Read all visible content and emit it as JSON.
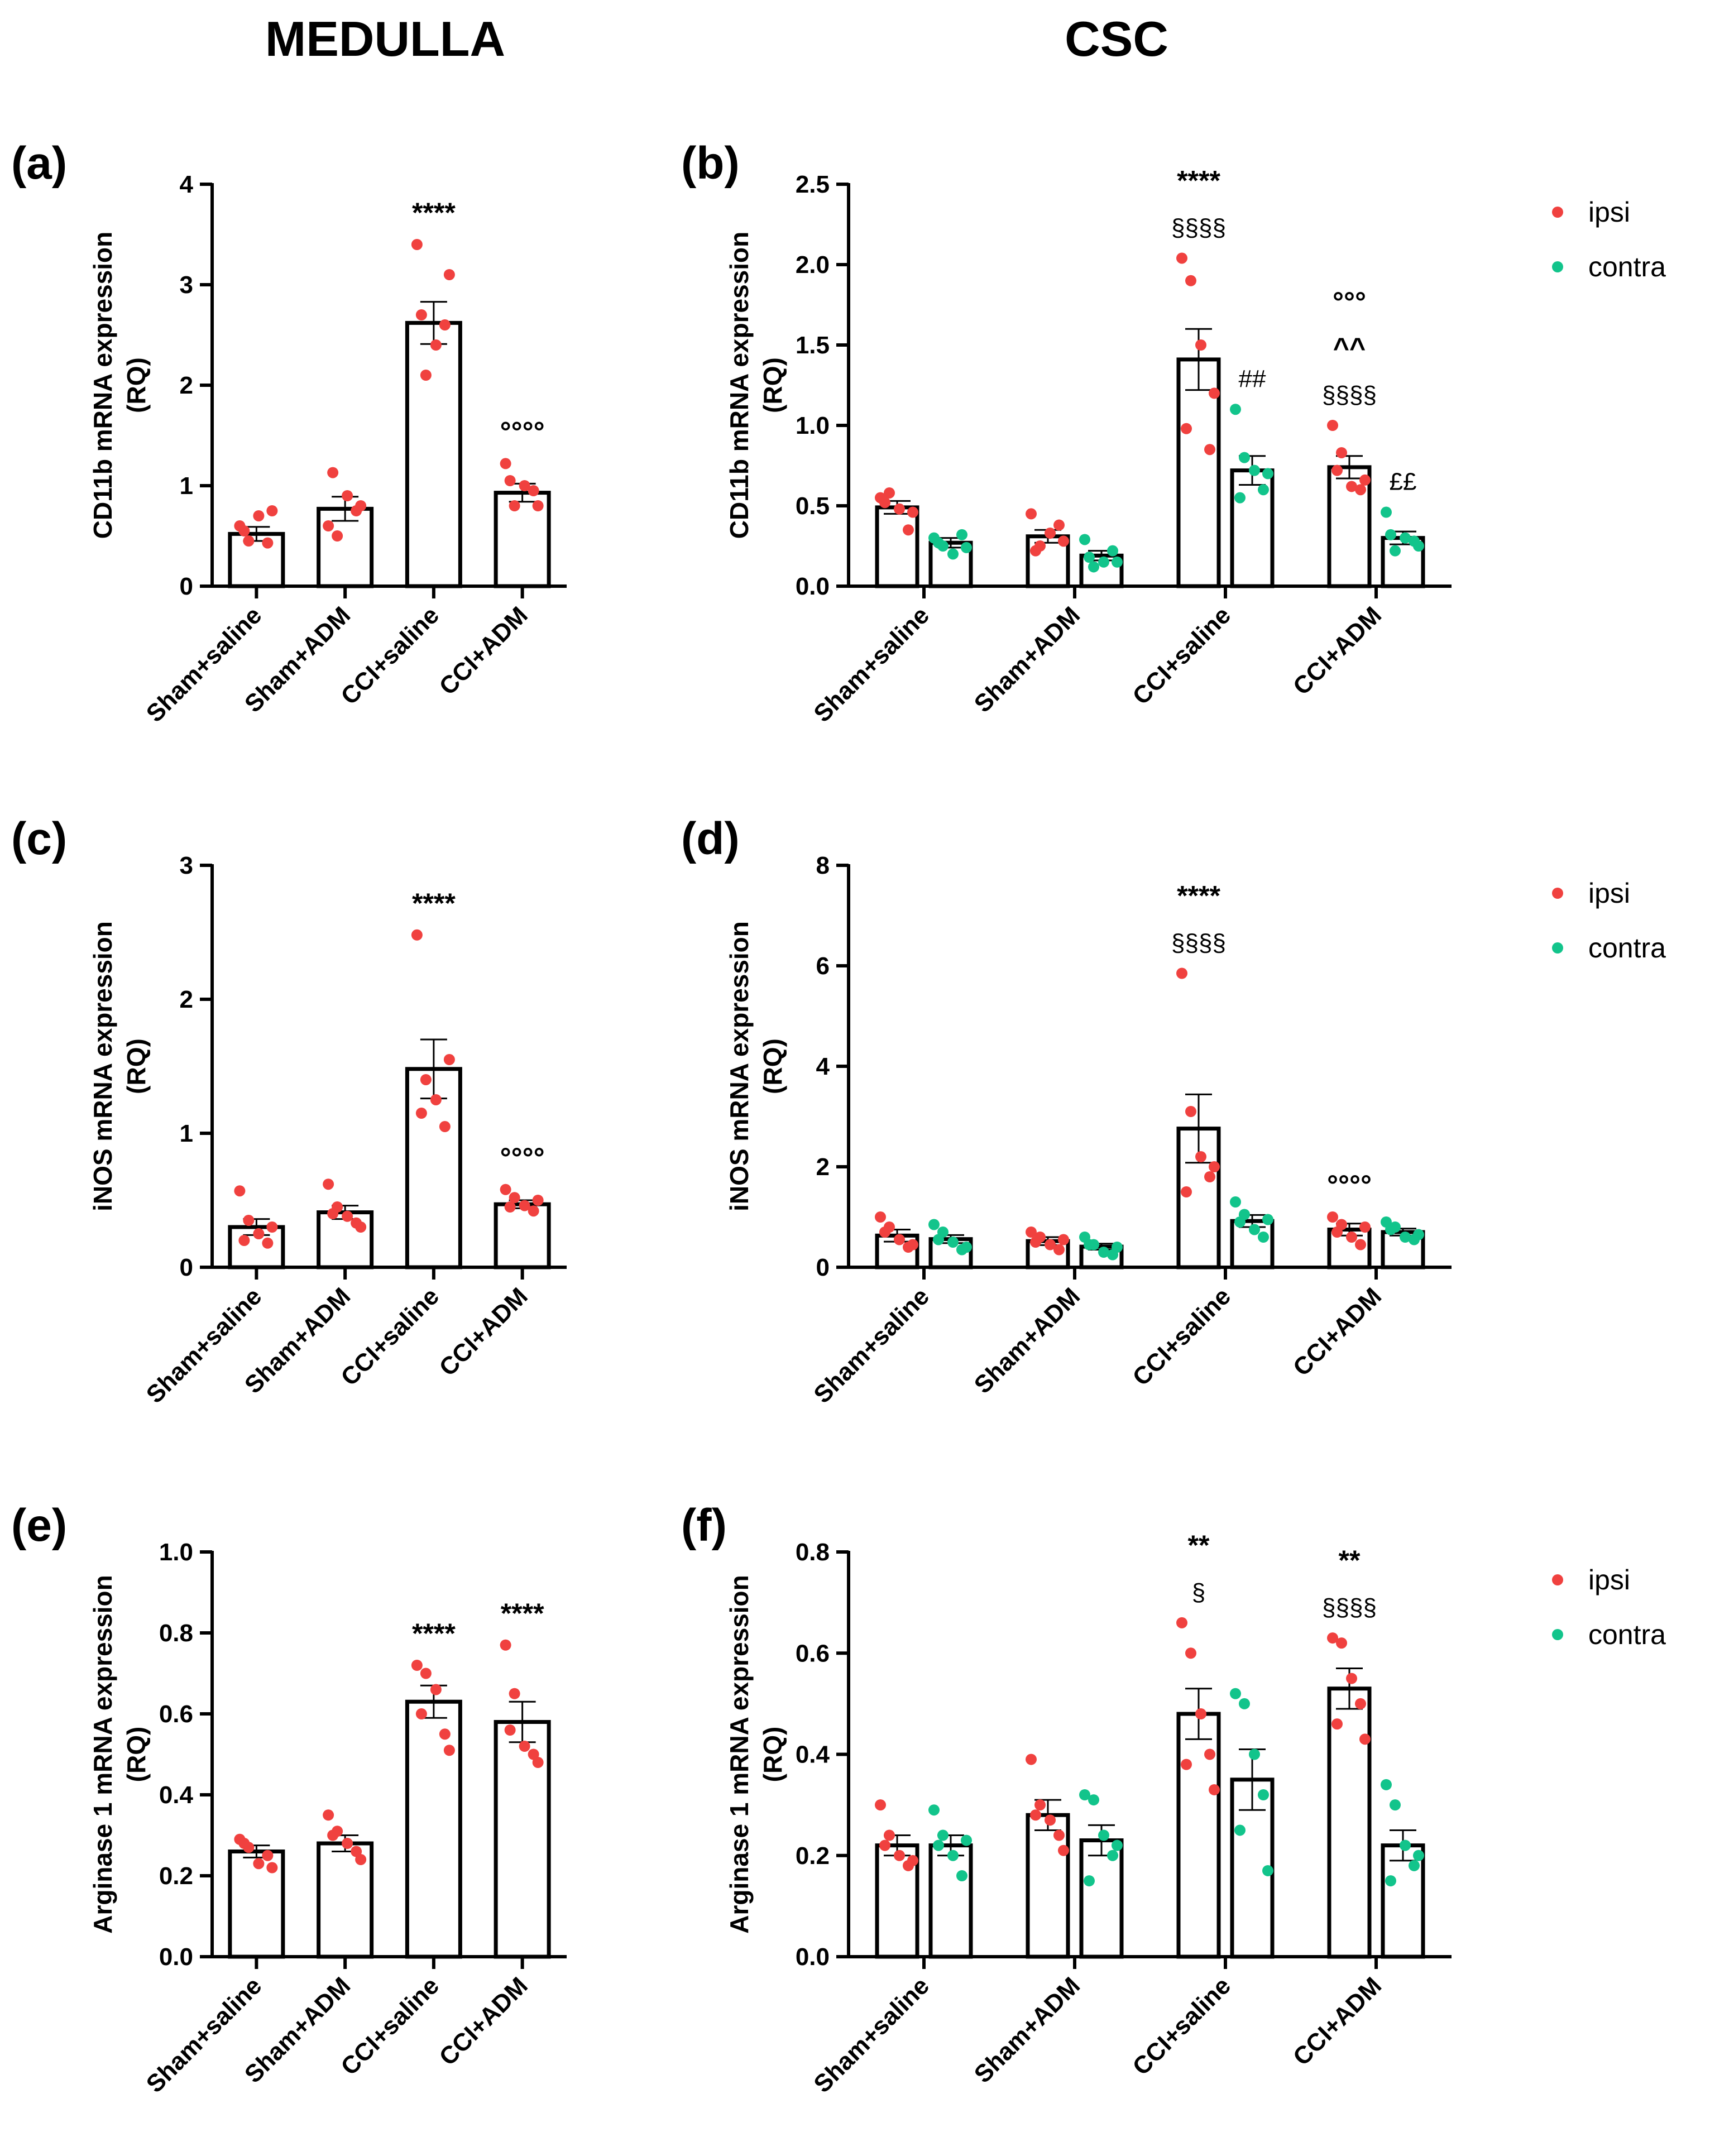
{
  "figure": {
    "columns": {
      "left": "MEDULLA",
      "right": "CSC"
    },
    "legend": {
      "ipsi": "ipsi",
      "contra": "contra"
    },
    "colors": {
      "ipsi": "#f0413f",
      "contra": "#12c48b",
      "bar": "#000000"
    }
  },
  "chart_data": [
    {
      "panel": "(a)",
      "type": "bar",
      "column": "MEDULLA",
      "ylabel": [
        "CD11b mRNA expression",
        "(RQ)"
      ],
      "ylim": [
        0,
        4
      ],
      "yticks": [
        "0",
        "1",
        "2",
        "3",
        "4"
      ],
      "categories": [
        "Sham+saline",
        "Sham+ADM",
        "CCI+saline",
        "CCI+ADM"
      ],
      "series": [
        {
          "name": "ipsi",
          "values": [
            0.52,
            0.77,
            2.62,
            0.93
          ],
          "sem": [
            0.07,
            0.12,
            0.21,
            0.09
          ],
          "points": [
            [
              0.6,
              0.45,
              0.7,
              0.43,
              0.55,
              0.75
            ],
            [
              0.6,
              0.5,
              0.9,
              0.75,
              1.13,
              0.8
            ],
            [
              3.4,
              2.1,
              2.4,
              2.6,
              2.7,
              3.1
            ],
            [
              1.22,
              0.8,
              1.0,
              0.95,
              1.05,
              0.8
            ]
          ]
        }
      ],
      "annotations": [
        {
          "group": 2,
          "lines": [
            "****"
          ]
        },
        {
          "group": 3,
          "lines": [
            "°°°°"
          ]
        }
      ]
    },
    {
      "panel": "(b)",
      "type": "bar",
      "column": "CSC",
      "ylabel": [
        "CD11b mRNA expression",
        "(RQ)"
      ],
      "ylim": [
        0,
        2.5
      ],
      "yticks": [
        "0.0",
        "0.5",
        "1.0",
        "1.5",
        "2.0",
        "2.5"
      ],
      "categories": [
        "Sham+saline",
        "Sham+ADM",
        "CCI+saline",
        "CCI+ADM"
      ],
      "series": [
        {
          "name": "ipsi",
          "values": [
            0.49,
            0.31,
            1.41,
            0.74
          ],
          "sem": [
            0.04,
            0.04,
            0.19,
            0.07
          ],
          "points": [
            [
              0.55,
              0.58,
              0.48,
              0.35,
              0.52,
              0.46
            ],
            [
              0.45,
              0.25,
              0.33,
              0.38,
              0.22,
              0.28
            ],
            [
              2.04,
              1.9,
              1.5,
              0.85,
              0.98,
              1.2
            ],
            [
              1.0,
              0.83,
              0.62,
              0.6,
              0.72,
              0.66
            ]
          ]
        },
        {
          "name": "contra",
          "values": [
            0.27,
            0.19,
            0.72,
            0.3
          ],
          "sem": [
            0.03,
            0.03,
            0.09,
            0.04
          ],
          "points": [
            [
              0.3,
              0.25,
              0.2,
              0.32,
              0.27,
              0.24
            ],
            [
              0.29,
              0.12,
              0.15,
              0.22,
              0.18,
              0.15
            ],
            [
              1.1,
              0.8,
              0.72,
              0.6,
              0.55,
              0.7
            ],
            [
              0.46,
              0.22,
              0.3,
              0.28,
              0.32,
              0.25
            ]
          ]
        }
      ],
      "annotations": [
        {
          "group": 2,
          "series": "ipsi",
          "lines": [
            "****",
            "§§§§"
          ]
        },
        {
          "group": 2,
          "series": "contra",
          "lines": [
            "##"
          ]
        },
        {
          "group": 3,
          "series": "ipsi",
          "lines": [
            "°°°",
            "^^",
            "§§§§"
          ]
        },
        {
          "group": 3,
          "series": "contra",
          "lines": [
            "££"
          ]
        }
      ]
    },
    {
      "panel": "(c)",
      "type": "bar",
      "column": "MEDULLA",
      "ylabel": [
        "iNOS mRNA expression",
        "(RQ)"
      ],
      "ylim": [
        0,
        3
      ],
      "yticks": [
        "0",
        "1",
        "2",
        "3"
      ],
      "categories": [
        "Sham+saline",
        "Sham+ADM",
        "CCI+saline",
        "CCI+ADM"
      ],
      "series": [
        {
          "name": "ipsi",
          "values": [
            0.3,
            0.41,
            1.48,
            0.47
          ],
          "sem": [
            0.06,
            0.05,
            0.22,
            0.03
          ],
          "points": [
            [
              0.57,
              0.35,
              0.25,
              0.18,
              0.2,
              0.3
            ],
            [
              0.62,
              0.45,
              0.38,
              0.33,
              0.4,
              0.3
            ],
            [
              2.48,
              1.4,
              1.25,
              1.05,
              1.15,
              1.55
            ],
            [
              0.58,
              0.52,
              0.46,
              0.42,
              0.45,
              0.5
            ]
          ]
        }
      ],
      "annotations": [
        {
          "group": 2,
          "lines": [
            "****"
          ]
        },
        {
          "group": 3,
          "lines": [
            "°°°°"
          ]
        }
      ]
    },
    {
      "panel": "(d)",
      "type": "bar",
      "column": "CSC",
      "ylabel": [
        "iNOS mRNA expression",
        "(RQ)"
      ],
      "ylim": [
        0,
        8
      ],
      "yticks": [
        "0",
        "2",
        "4",
        "6",
        "8"
      ],
      "categories": [
        "Sham+saline",
        "Sham+ADM",
        "CCI+saline",
        "CCI+ADM"
      ],
      "series": [
        {
          "name": "ipsi",
          "values": [
            0.63,
            0.52,
            2.76,
            0.75
          ],
          "sem": [
            0.12,
            0.08,
            0.68,
            0.12
          ],
          "points": [
            [
              1.0,
              0.8,
              0.55,
              0.4,
              0.7,
              0.45
            ],
            [
              0.7,
              0.6,
              0.45,
              0.35,
              0.5,
              0.55
            ],
            [
              5.85,
              3.1,
              2.2,
              1.8,
              1.5,
              2.0
            ],
            [
              1.0,
              0.85,
              0.6,
              0.45,
              0.7,
              0.8
            ]
          ]
        },
        {
          "name": "contra",
          "values": [
            0.56,
            0.41,
            0.92,
            0.7
          ],
          "sem": [
            0.08,
            0.06,
            0.12,
            0.07
          ],
          "points": [
            [
              0.85,
              0.7,
              0.5,
              0.35,
              0.55,
              0.4
            ],
            [
              0.6,
              0.45,
              0.3,
              0.25,
              0.45,
              0.4
            ],
            [
              1.3,
              1.05,
              0.75,
              0.6,
              0.9,
              0.95
            ],
            [
              0.9,
              0.8,
              0.6,
              0.55,
              0.75,
              0.65
            ]
          ]
        }
      ],
      "annotations": [
        {
          "group": 2,
          "series": "ipsi",
          "lines": [
            "****",
            "§§§§"
          ]
        },
        {
          "group": 3,
          "series": "ipsi",
          "lines": [
            "°°°°"
          ]
        }
      ]
    },
    {
      "panel": "(e)",
      "type": "bar",
      "column": "MEDULLA",
      "ylabel": [
        "Arginase 1 mRNA expression",
        "(RQ)"
      ],
      "ylim": [
        0,
        1.0
      ],
      "yticks": [
        "0.0",
        "0.2",
        "0.4",
        "0.6",
        "0.8",
        "1.0"
      ],
      "categories": [
        "Sham+saline",
        "Sham+ADM",
        "CCI+saline",
        "CCI+ADM"
      ],
      "series": [
        {
          "name": "ipsi",
          "values": [
            0.26,
            0.28,
            0.63,
            0.58
          ],
          "sem": [
            0.015,
            0.02,
            0.04,
            0.05
          ],
          "points": [
            [
              0.29,
              0.27,
              0.23,
              0.25,
              0.28,
              0.22
            ],
            [
              0.35,
              0.31,
              0.28,
              0.26,
              0.3,
              0.24
            ],
            [
              0.72,
              0.7,
              0.66,
              0.55,
              0.6,
              0.51
            ],
            [
              0.77,
              0.65,
              0.52,
              0.5,
              0.56,
              0.48
            ]
          ]
        }
      ],
      "annotations": [
        {
          "group": 2,
          "lines": [
            "****"
          ]
        },
        {
          "group": 3,
          "lines": [
            "****"
          ]
        }
      ]
    },
    {
      "panel": "(f)",
      "type": "bar",
      "column": "CSC",
      "ylabel": [
        "Arginase 1 mRNA expression",
        "(RQ)"
      ],
      "ylim": [
        0,
        0.8
      ],
      "yticks": [
        "0.0",
        "0.2",
        "0.4",
        "0.6",
        "0.8"
      ],
      "categories": [
        "Sham+saline",
        "Sham+ADM",
        "CCI+saline",
        "CCI+ADM"
      ],
      "series": [
        {
          "name": "ipsi",
          "values": [
            0.22,
            0.28,
            0.48,
            0.53
          ],
          "sem": [
            0.02,
            0.03,
            0.05,
            0.04
          ],
          "points": [
            [
              0.3,
              0.24,
              0.2,
              0.18,
              0.22,
              0.19
            ],
            [
              0.39,
              0.3,
              0.27,
              0.24,
              0.28,
              0.21
            ],
            [
              0.66,
              0.6,
              0.48,
              0.4,
              0.38,
              0.33
            ],
            [
              0.63,
              0.62,
              0.55,
              0.5,
              0.46,
              0.43
            ]
          ]
        },
        {
          "name": "contra",
          "values": [
            0.22,
            0.23,
            0.35,
            0.22
          ],
          "sem": [
            0.02,
            0.03,
            0.06,
            0.03
          ],
          "points": [
            [
              0.29,
              0.24,
              0.2,
              0.16,
              0.22,
              0.23
            ],
            [
              0.32,
              0.31,
              0.24,
              0.2,
              0.15,
              0.22
            ],
            [
              0.52,
              0.5,
              0.4,
              0.32,
              0.25,
              0.17
            ],
            [
              0.34,
              0.3,
              0.22,
              0.18,
              0.15,
              0.2
            ]
          ]
        }
      ],
      "annotations": [
        {
          "group": 2,
          "series": "ipsi",
          "lines": [
            "**",
            "§"
          ]
        },
        {
          "group": 3,
          "series": "ipsi",
          "lines": [
            "**",
            "§§§§"
          ]
        }
      ]
    }
  ]
}
